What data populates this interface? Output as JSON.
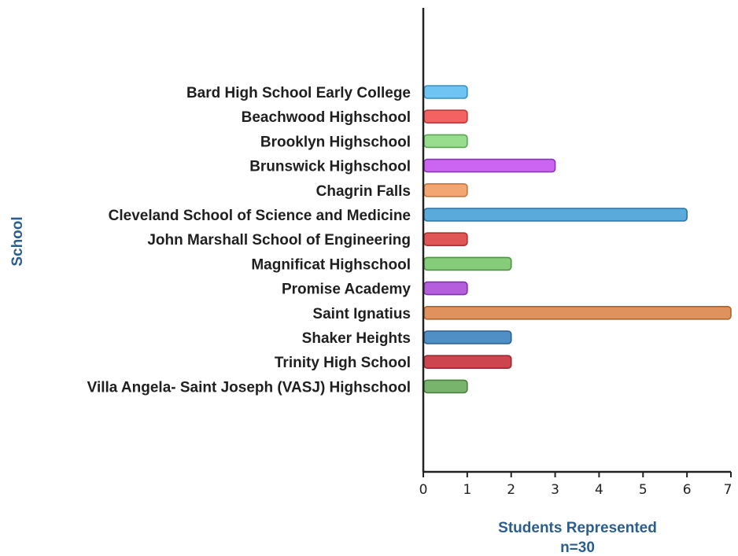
{
  "chart_data": {
    "type": "bar",
    "orientation": "horizontal",
    "title": "",
    "xlabel": "Students Represented",
    "xlabel_note": "n=30",
    "ylabel": "School",
    "xlim": [
      0,
      7
    ],
    "x_ticks": [
      0,
      1,
      2,
      3,
      4,
      5,
      6,
      7
    ],
    "grid": false,
    "categories": [
      "Bard High School Early College",
      "Beachwood Highschool",
      "Brooklyn Highschool",
      "Brunswick Highschool",
      "Chagrin Falls",
      "Cleveland School of Science and Medicine",
      "John Marshall School of Engineering",
      "Magnificat Highschool",
      "Promise Academy",
      "Saint Ignatius",
      "Shaker Heights",
      "Trinity High School",
      "Villa Angela- Saint Joseph (VASJ) Highschool"
    ],
    "values": [
      1,
      1,
      1,
      3,
      1,
      6,
      1,
      2,
      1,
      7,
      2,
      2,
      1
    ],
    "colors": [
      "#6ec4f2",
      "#f46262",
      "#97dd8d",
      "#cc66f2",
      "#f4a672",
      "#5aaadc",
      "#e05656",
      "#86cc7a",
      "#b45ede",
      "#e0925e",
      "#4f8fc6",
      "#cc454f",
      "#79b46c"
    ],
    "stroke_colors": [
      "#3a8fbf",
      "#b83b3b",
      "#5fa456",
      "#8a36b3",
      "#c0773f",
      "#2e73a3",
      "#a83232",
      "#4f9444",
      "#7e33a6",
      "#ad6430",
      "#2b5f8e",
      "#962a33",
      "#4b8040"
    ]
  }
}
